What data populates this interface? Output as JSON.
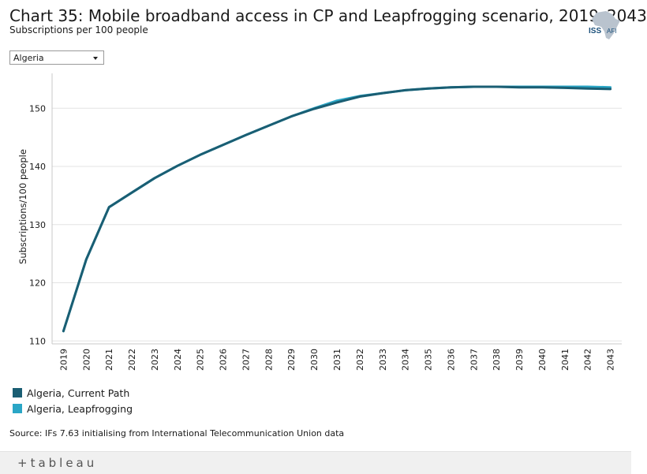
{
  "header": {
    "title": "Chart 35: Mobile broadband access in CP and Leapfrogging scenario, 2019–2043",
    "subtitle": "Subscriptions per 100 people"
  },
  "logo": {
    "text_main": "ISS",
    "text_sub": "AFI",
    "icon": "africa-map-icon"
  },
  "filter": {
    "selected": "Algeria",
    "icon": "chevron-down-icon"
  },
  "chart_data": {
    "type": "line",
    "title": "Chart 35: Mobile broadband access in CP and Leapfrogging scenario, 2019–2043",
    "xlabel": "",
    "ylabel": "Subscriptions/100 people",
    "ylim": [
      109.5,
      156
    ],
    "yticks": [
      110,
      120,
      130,
      140,
      150
    ],
    "grid": true,
    "legend_position": "bottom-left",
    "categories": [
      "2019",
      "2020",
      "2021",
      "2022",
      "2023",
      "2024",
      "2025",
      "2026",
      "2027",
      "2028",
      "2029",
      "2030",
      "2031",
      "2032",
      "2033",
      "2034",
      "2035",
      "2036",
      "2037",
      "2038",
      "2039",
      "2040",
      "2041",
      "2042",
      "2043"
    ],
    "series": [
      {
        "name": "Algeria, Leapfrogging",
        "color": "#2aa6c6",
        "values": [
          111.7,
          124.0,
          133.0,
          135.5,
          138.0,
          140.1,
          142.0,
          143.7,
          145.4,
          147.0,
          148.6,
          150.0,
          151.3,
          152.1,
          152.6,
          153.1,
          153.4,
          153.6,
          153.7,
          153.7,
          153.7,
          153.7,
          153.7,
          153.7,
          153.6
        ]
      },
      {
        "name": "Algeria, Current Path",
        "color": "#1a5e73",
        "values": [
          111.7,
          124.0,
          133.0,
          135.5,
          138.0,
          140.1,
          142.0,
          143.7,
          145.4,
          147.0,
          148.6,
          149.9,
          151.0,
          152.0,
          152.6,
          153.1,
          153.4,
          153.6,
          153.7,
          153.7,
          153.6,
          153.6,
          153.5,
          153.4,
          153.3
        ]
      }
    ]
  },
  "legend": [
    {
      "label": "Algeria, Current Path",
      "color": "#1a5e73"
    },
    {
      "label": "Algeria, Leapfrogging",
      "color": "#2aa6c6"
    }
  ],
  "source": "Source: IFs 7.63 initialising from International Telecommunication Union data",
  "footer": {
    "brand": "+tableau",
    "icon": "tableau-icon"
  }
}
